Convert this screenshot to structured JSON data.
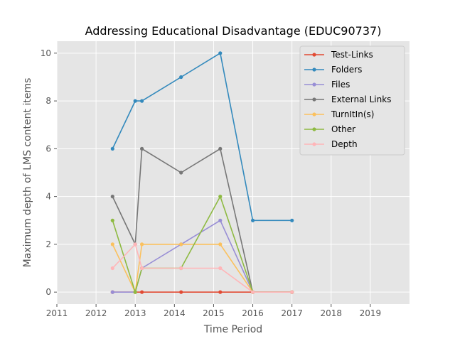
{
  "chart_data": {
    "type": "line",
    "title": "Addressing Educational Disadvantage (EDUC90737)",
    "xlabel": "Time Period",
    "ylabel": "Maximum depth of LMS content items",
    "xlim": [
      2011,
      2020
    ],
    "ylim": [
      -0.5,
      10.5
    ],
    "xticks": [
      2011,
      2012,
      2013,
      2014,
      2015,
      2016,
      2017,
      2018,
      2019
    ],
    "yticks": [
      0,
      2,
      4,
      6,
      8,
      10
    ],
    "grid": true,
    "legend_position": "top-right",
    "series": [
      {
        "name": "Test-Links",
        "color": "#e24a33",
        "x": [
          2012.42,
          2013.0,
          2013.17,
          2014.17,
          2015.17,
          2016.0,
          2017.0
        ],
        "y": [
          0,
          0,
          0,
          0,
          0,
          0,
          0
        ]
      },
      {
        "name": "Folders",
        "color": "#348abd",
        "x": [
          2012.42,
          2013.0,
          2013.17,
          2014.17,
          2015.17,
          2016.0,
          2017.0
        ],
        "y": [
          6,
          8,
          8,
          9,
          10,
          3,
          3
        ]
      },
      {
        "name": "Files",
        "color": "#988ed5",
        "x": [
          2012.42,
          2013.0,
          2013.17,
          2014.17,
          2015.17,
          2016.0,
          2017.0
        ],
        "y": [
          0,
          0,
          1,
          2,
          3,
          0,
          0
        ]
      },
      {
        "name": "External Links",
        "color": "#777777",
        "x": [
          2012.42,
          2013.0,
          2013.17,
          2014.17,
          2015.17,
          2016.0,
          2017.0
        ],
        "y": [
          4,
          2,
          6,
          5,
          6,
          0,
          0
        ]
      },
      {
        "name": "TurnItIn(s)",
        "color": "#fbc15e",
        "x": [
          2012.42,
          2013.0,
          2013.17,
          2014.17,
          2015.17,
          2016.0,
          2017.0
        ],
        "y": [
          2,
          0,
          2,
          2,
          2,
          0,
          0
        ]
      },
      {
        "name": "Other",
        "color": "#8eba42",
        "x": [
          2012.42,
          2013.0,
          2013.17,
          2014.17,
          2015.17,
          2016.0,
          2017.0
        ],
        "y": [
          3,
          0,
          1,
          1,
          4,
          0,
          0
        ]
      },
      {
        "name": "Depth",
        "color": "#ffb5b8",
        "x": [
          2012.42,
          2013.0,
          2013.17,
          2014.17,
          2015.17,
          2016.0,
          2017.0
        ],
        "y": [
          1,
          2,
          1,
          1,
          1,
          0,
          0
        ]
      }
    ]
  }
}
